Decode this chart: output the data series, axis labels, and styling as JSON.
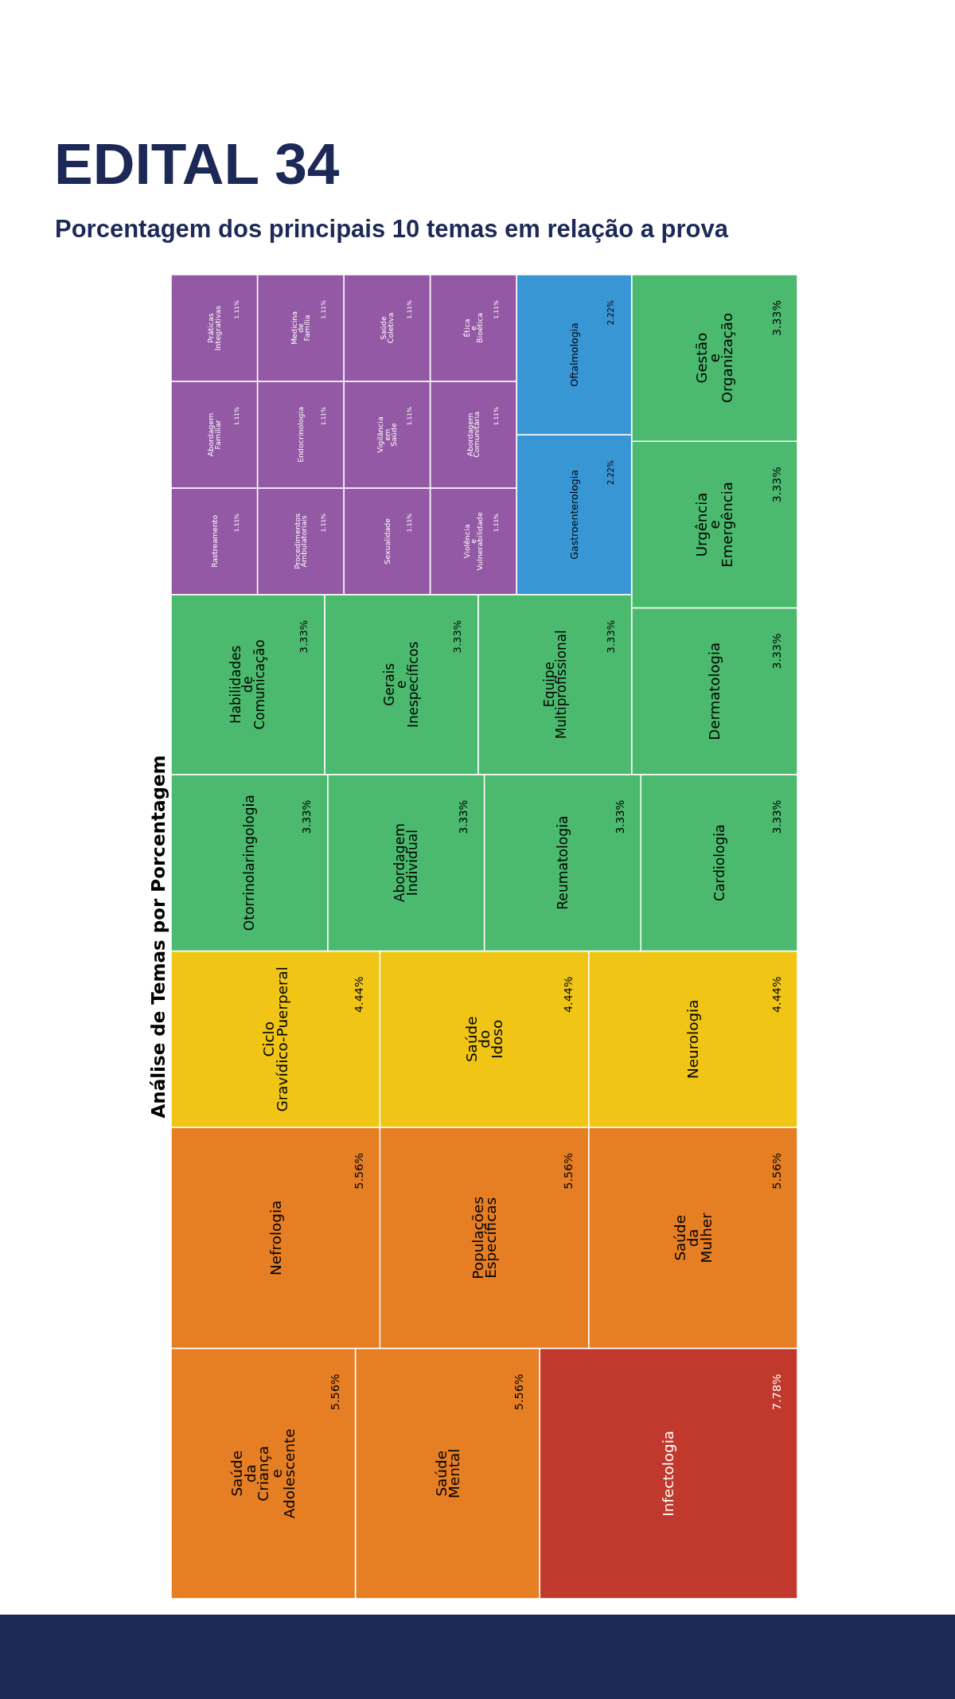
{
  "chart_data": {
    "type": "other",
    "title": "EDITAL 34",
    "subtitle": "Porcentagem dos principais 10 temas em relação a prova",
    "ylabel": "Análise de Temas por Porcentagem",
    "categories": [
      "Infectologia",
      "Saúde Mental",
      "Saúde da Criança e Adolescente",
      "Saúde da Mulher",
      "Populações Específicas",
      "Nefrologia",
      "Neurologia",
      "Saúde do Idoso",
      "Ciclo Gravídico-Puerperal",
      "Cardiologia",
      "Reumatologia",
      "Abordagem Individual",
      "Otorrinolaringologia",
      "Dermatologia",
      "Urgência e Emergência",
      "Gestão e Organização",
      "Equipe Multiprofissional",
      "Gerais e Inespecíficos",
      "Habilidades de Comunicação",
      "Gastroenterologia",
      "Oftalmologia",
      "Violência e Vulnerabilidade",
      "Abordagem Comunitária",
      "Ética e Bioética",
      "Sexualidade",
      "Procedimentos Ambulatoriais",
      "Rastreamento",
      "Vigilância em Saúde",
      "Saúde Coletiva",
      "Endocrinologia",
      "Abordagem Familiar",
      "Medicina de Família",
      "Práticas Integrativas"
    ],
    "values": [
      7.78,
      5.56,
      5.56,
      5.56,
      5.56,
      5.56,
      4.44,
      4.44,
      4.44,
      3.33,
      3.33,
      3.33,
      3.33,
      3.33,
      3.33,
      3.33,
      3.33,
      3.33,
      3.33,
      2.22,
      2.22,
      1.11,
      1.11,
      1.11,
      1.11,
      1.11,
      1.11,
      1.11,
      1.11,
      1.11,
      1.11,
      1.11,
      1.11
    ],
    "value_labels": [
      "7.78%",
      "5.56%",
      "5.56%",
      "5.56%",
      "5.56%",
      "5.56%",
      "4.44%",
      "4.44%",
      "4.44%",
      "3.33%",
      "3.33%",
      "3.33%",
      "3.33%",
      "3.33%",
      "3.33%",
      "3.33%",
      "3.33%",
      "3.33%",
      "3.33%",
      "2.22%",
      "2.22%",
      "1.11%",
      "1.11%",
      "1.11%",
      "1.11%",
      "1.11%",
      "1.11%",
      "1.11%",
      "1.11%",
      "1.11%",
      "1.11%",
      "1.11%",
      "1.11%"
    ],
    "colors": [
      "#c0392c",
      "#e67e24",
      "#e67e24",
      "#e67e24",
      "#e67e24",
      "#e67e24",
      "#f0c516",
      "#f0c516",
      "#f0c516",
      "#4bba6e",
      "#4bba6e",
      "#4bba6e",
      "#4bba6e",
      "#4bba6e",
      "#4bba6e",
      "#4bba6e",
      "#4bba6e",
      "#4bba6e",
      "#4bba6e",
      "#3996d5",
      "#3996d5",
      "#9459a4",
      "#9459a4",
      "#9459a4",
      "#9459a4",
      "#9459a4",
      "#9459a4",
      "#9459a4",
      "#9459a4",
      "#9459a4",
      "#9459a4",
      "#9459a4",
      "#9459a4"
    ]
  }
}
